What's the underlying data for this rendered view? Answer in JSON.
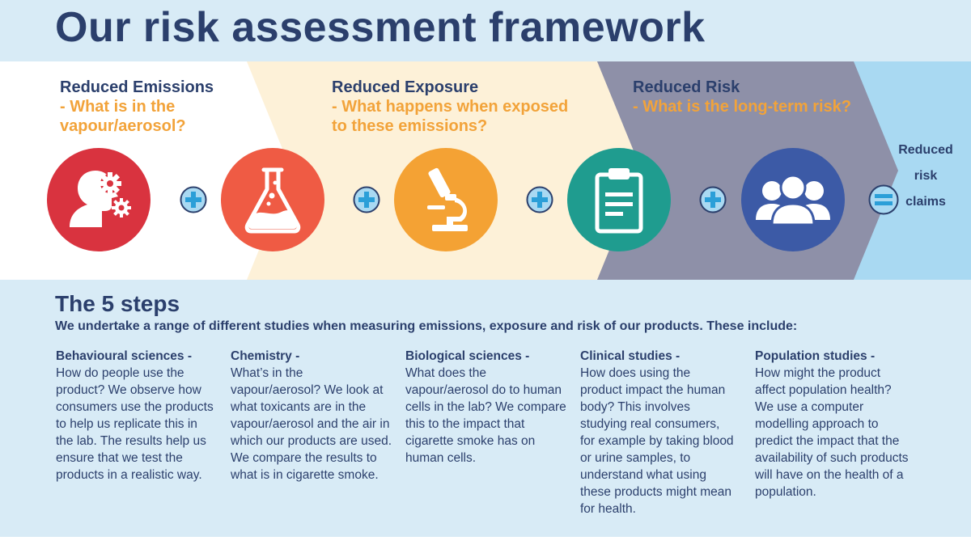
{
  "title": "Our risk assessment framework",
  "stages": [
    {
      "heading": "Reduced Emissions",
      "question": "- What is in the vapour/aerosol?"
    },
    {
      "heading": "Reduced Exposure",
      "question": "- What happens when exposed to these emissions?"
    },
    {
      "heading": "Reduced Risk",
      "question": "- What is the long-term risk?"
    }
  ],
  "icons": [
    "person-gears-icon",
    "flask-icon",
    "microscope-icon",
    "clipboard-icon",
    "people-icon"
  ],
  "operators": [
    "plus-icon",
    "plus-icon",
    "plus-icon",
    "plus-icon",
    "equals-icon"
  ],
  "result": {
    "line1": "Reduced",
    "line2": "risk",
    "line3": "claims"
  },
  "steps": {
    "title": "The 5 steps",
    "subtitle": "We undertake a range of different studies when measuring emissions, exposure and risk of our products. These include:",
    "columns": [
      {
        "heading": "Behavioural sciences -",
        "body": "How do people use the product? We observe how consumers use the products to help us replicate this in the lab. The results help us ensure that we test the products in a realistic way."
      },
      {
        "heading": "Chemistry -",
        "body": "What’s in the vapour/aerosol? We look at what toxicants are in the vapour/aerosol and the air in which our products are used. We compare the results to what is in cigarette smoke."
      },
      {
        "heading": "Biological sciences -",
        "body": "What does the vapour/aerosol do to human cells in the lab? We compare this to the impact that cigarette smoke has on human cells."
      },
      {
        "heading": "Clinical studies -",
        "body": "How does using the product impact the human body? This involves studying real consumers, for example by taking blood or urine samples, to understand what using these products might mean for health."
      },
      {
        "heading": "Population studies -",
        "body": "How might the product affect population health? We use a computer modelling approach to predict the impact that the availability of such products will have on the health of a population."
      }
    ]
  },
  "colors": {
    "title": "#2b3f6c",
    "accent": "#f2a33a",
    "circle1": "#d9333f",
    "circle2": "#ef5b44",
    "circle3": "#f4a234",
    "circle4": "#1f9c8f",
    "circle5": "#3c5aa6",
    "band_white": "#ffffff",
    "band_cream": "#fdf1d8",
    "band_grey": "#8e90a8",
    "band_blue": "#a9d9f2"
  }
}
